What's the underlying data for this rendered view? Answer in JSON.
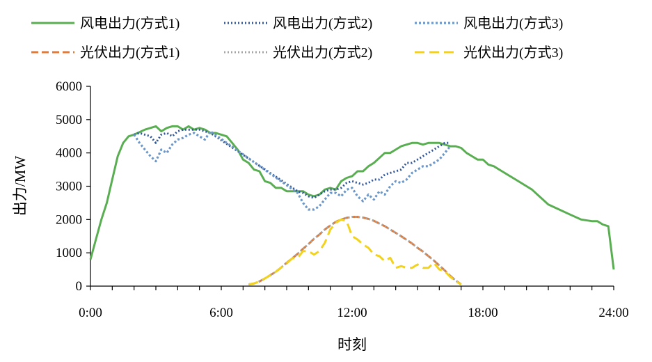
{
  "chart_data": {
    "type": "line",
    "title": "",
    "xlabel": "时刻",
    "ylabel": "出力/MW",
    "xlim": [
      0,
      24
    ],
    "ylim": [
      0,
      6000
    ],
    "x_ticks": [
      0,
      6,
      12,
      18,
      24
    ],
    "x_tick_labels": [
      "0:00",
      "6:00",
      "12:00",
      "18:00",
      "24:00"
    ],
    "y_ticks": [
      0,
      1000,
      2000,
      3000,
      4000,
      5000,
      6000
    ],
    "y_tick_labels": [
      "0",
      "1000",
      "2000",
      "3000",
      "4000",
      "5000",
      "6000"
    ],
    "grid": false,
    "legend_position": "top",
    "series": [
      {
        "name": "风电出力(方式1)",
        "color": "#5aae52",
        "dash": "solid",
        "x": [
          0,
          0.25,
          0.5,
          0.75,
          1,
          1.25,
          1.5,
          1.75,
          2,
          2.5,
          3,
          3.25,
          3.5,
          3.75,
          4,
          4.25,
          4.5,
          4.75,
          5,
          5.25,
          5.5,
          5.75,
          6,
          6.25,
          6.5,
          6.75,
          7,
          7.25,
          7.5,
          7.75,
          8,
          8.25,
          8.5,
          8.75,
          9,
          9.25,
          9.5,
          9.75,
          10,
          10.25,
          10.5,
          10.75,
          11,
          11.25,
          11.5,
          11.75,
          12,
          12.25,
          12.5,
          12.75,
          13,
          13.25,
          13.5,
          13.75,
          14,
          14.25,
          14.5,
          14.75,
          15,
          15.25,
          15.5,
          15.75,
          16,
          16.25,
          16.5,
          16.75,
          17,
          17.25,
          17.5,
          17.75,
          18,
          18.25,
          18.5,
          18.75,
          19,
          19.5,
          20,
          20.25,
          20.5,
          20.75,
          21,
          21.5,
          22,
          22.5,
          23,
          23.25,
          23.5,
          23.75,
          24
        ],
        "values": [
          800,
          1400,
          2000,
          2500,
          3200,
          3900,
          4300,
          4500,
          4550,
          4700,
          4800,
          4650,
          4750,
          4800,
          4800,
          4700,
          4800,
          4700,
          4750,
          4700,
          4600,
          4600,
          4550,
          4500,
          4300,
          4100,
          3800,
          3700,
          3500,
          3450,
          3150,
          3100,
          2950,
          2950,
          2850,
          2850,
          2850,
          2850,
          2750,
          2700,
          2750,
          2900,
          2950,
          2900,
          3150,
          3250,
          3300,
          3450,
          3450,
          3600,
          3700,
          3850,
          4000,
          4000,
          4100,
          4200,
          4250,
          4300,
          4300,
          4250,
          4300,
          4300,
          4300,
          4250,
          4200,
          4200,
          4150,
          4000,
          3900,
          3800,
          3800,
          3650,
          3600,
          3500,
          3400,
          3200,
          3000,
          2900,
          2750,
          2600,
          2450,
          2300,
          2150,
          2000,
          1950,
          1950,
          1850,
          1800,
          500
        ]
      },
      {
        "name": "风电出力(方式2)",
        "color": "#2f5597",
        "dash": "dotted",
        "x": [
          2,
          2.25,
          2.5,
          2.75,
          3,
          3.25,
          3.5,
          3.75,
          4,
          4.25,
          4.5,
          4.75,
          5,
          5.25,
          5.5,
          9.5,
          9.75,
          10,
          10.25,
          10.5,
          10.75,
          11,
          11.25,
          11.5,
          11.75,
          12,
          12.25,
          12.5,
          12.75,
          13,
          13.25,
          13.5,
          13.75,
          14,
          14.25,
          14.5,
          14.75,
          15,
          15.25,
          15.5,
          15.75,
          16,
          16.25,
          16.5
        ],
        "values": [
          4550,
          4600,
          4550,
          4500,
          4300,
          4550,
          4600,
          4500,
          4650,
          4700,
          4700,
          4700,
          4700,
          4650,
          4600,
          2850,
          2800,
          2700,
          2650,
          2750,
          2850,
          2900,
          2900,
          2950,
          3100,
          3150,
          3100,
          3050,
          3100,
          3200,
          3200,
          3350,
          3400,
          3450,
          3500,
          3700,
          3700,
          3800,
          3900,
          4000,
          4100,
          4200,
          4300,
          4300
        ]
      },
      {
        "name": "风电出力(方式3)",
        "color": "#6b97c9",
        "dash": "dotted-coarse",
        "x": [
          2,
          2.25,
          2.5,
          2.75,
          3,
          3.25,
          3.5,
          3.75,
          4,
          4.25,
          4.5,
          4.75,
          5,
          5.25,
          5.5,
          9.5,
          9.75,
          10,
          10.25,
          10.5,
          10.75,
          11,
          11.25,
          11.5,
          11.75,
          12,
          12.25,
          12.5,
          12.75,
          13,
          13.25,
          13.5,
          13.75,
          14,
          14.25,
          14.5,
          14.75,
          15,
          15.25,
          15.5,
          15.75,
          16,
          16.25,
          16.5
        ],
        "values": [
          4550,
          4300,
          4100,
          3900,
          3750,
          4100,
          4000,
          4250,
          4400,
          4450,
          4550,
          4600,
          4500,
          4400,
          4650,
          2800,
          2500,
          2300,
          2300,
          2400,
          2600,
          2800,
          2800,
          2700,
          2900,
          2950,
          2700,
          2550,
          2750,
          2600,
          2850,
          2750,
          3000,
          3150,
          3100,
          3200,
          3400,
          3500,
          3600,
          3600,
          3700,
          3800,
          4000,
          4200
        ]
      },
      {
        "name": "光伏出力(方式1)",
        "color": "#e07b39",
        "dash": "dashed",
        "x": [
          7.25,
          7.5,
          7.75,
          8,
          8.25,
          8.5,
          8.75,
          9,
          9.25,
          9.5,
          9.75,
          10,
          10.25,
          10.5,
          10.75,
          11,
          11.25,
          11.5,
          11.75,
          12,
          12.25,
          12.5,
          12.75,
          13,
          13.25,
          13.5,
          13.75,
          14,
          14.25,
          14.5,
          14.75,
          15,
          15.25,
          15.5,
          15.75,
          16,
          16.25,
          16.5,
          16.75,
          17
        ],
        "values": [
          50,
          80,
          140,
          230,
          330,
          430,
          560,
          700,
          830,
          970,
          1120,
          1260,
          1420,
          1550,
          1700,
          1820,
          1930,
          2000,
          2050,
          2080,
          2080,
          2060,
          2020,
          1960,
          1880,
          1800,
          1700,
          1600,
          1500,
          1390,
          1280,
          1150,
          1040,
          900,
          770,
          620,
          470,
          310,
          170,
          50
        ]
      },
      {
        "name": "光伏出力(方式2)",
        "color": "#a5a5a5",
        "dash": "dotted",
        "x": [
          7.25,
          7.5,
          7.75,
          8,
          8.25,
          8.5,
          8.75,
          9,
          9.25,
          9.5,
          9.75,
          10,
          10.25,
          10.5,
          10.75,
          11,
          11.25,
          11.5,
          11.75,
          12,
          12.25,
          12.5,
          12.75,
          13,
          13.25,
          13.5,
          13.75,
          14,
          14.25,
          14.5,
          14.75,
          15,
          15.25,
          15.5,
          15.75,
          16,
          16.25,
          16.5,
          16.75,
          17
        ],
        "values": [
          50,
          80,
          140,
          230,
          330,
          430,
          560,
          700,
          830,
          970,
          1120,
          1260,
          1420,
          1550,
          1700,
          1820,
          1930,
          2000,
          2050,
          2080,
          2080,
          2060,
          2020,
          1960,
          1880,
          1800,
          1700,
          1600,
          1500,
          1390,
          1280,
          1150,
          1040,
          900,
          770,
          620,
          470,
          310,
          170,
          50
        ]
      },
      {
        "name": "光伏出力(方式3)",
        "color": "#f2d21b",
        "dash": "long-dashed",
        "x": [
          7.25,
          7.5,
          7.75,
          8,
          8.25,
          8.5,
          8.75,
          9,
          9.25,
          9.5,
          9.75,
          10,
          10.25,
          10.5,
          10.75,
          11,
          11.25,
          11.5,
          11.75,
          12,
          12.25,
          12.5,
          12.75,
          13,
          13.25,
          13.5,
          13.75,
          14,
          14.25,
          14.5,
          14.75,
          15,
          15.25,
          15.5,
          15.75,
          16,
          16.25,
          16.5,
          16.75,
          17
        ],
        "values": [
          50,
          80,
          140,
          230,
          330,
          430,
          560,
          680,
          830,
          850,
          1050,
          1050,
          950,
          1050,
          1300,
          1700,
          1900,
          2000,
          1950,
          1500,
          1400,
          1250,
          1150,
          950,
          900,
          750,
          850,
          550,
          600,
          550,
          550,
          650,
          550,
          550,
          700,
          500,
          450,
          280,
          150,
          50
        ]
      }
    ]
  }
}
